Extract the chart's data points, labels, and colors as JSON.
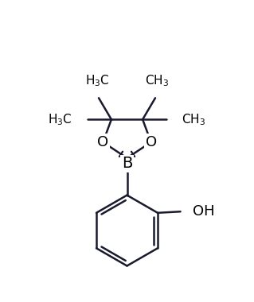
{
  "background": "#ffffff",
  "line_color": "#1a1a2e",
  "line_width": 1.8,
  "font_size_atom": 13,
  "font_size_methyl": 11,
  "figsize": [
    3.19,
    3.8
  ],
  "dpi": 100,
  "xlim": [
    0,
    10
  ],
  "ylim": [
    0,
    11.9
  ]
}
